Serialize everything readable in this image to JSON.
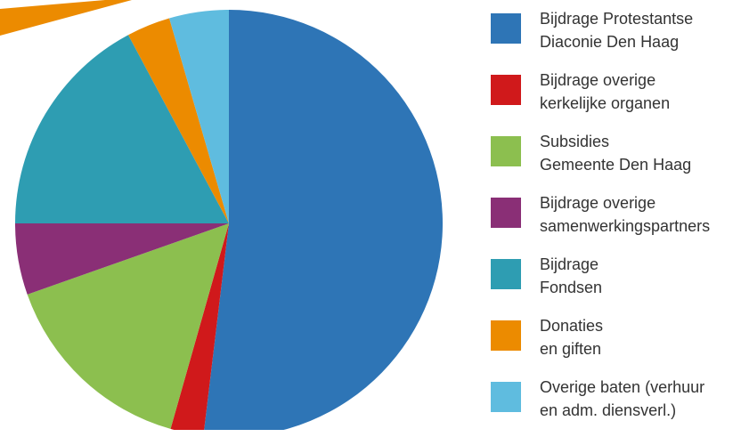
{
  "chart_data": {
    "type": "pie",
    "categories": [
      "Bijdrage Protestantse\nDiaconie Den Haag",
      "Bijdrage overige\nkerkelijke organen",
      "Subsidies\nGemeente Den Haag",
      "Bijdrage overige\nsamenwerkingspartners",
      "Bijdrage\nFondsen",
      "Donaties\nen giften",
      "Overige baten (verhuur\nen adm. diensverl.)"
    ],
    "values": [
      51.9,
      2.5,
      15.2,
      5.4,
      17.2,
      3.3,
      4.5
    ],
    "colors": [
      "#2e75b6",
      "#d0191b",
      "#8cbf4f",
      "#8a2f76",
      "#2e9db2",
      "#ec8b00",
      "#5fbcdf"
    ],
    "legend": "right"
  }
}
